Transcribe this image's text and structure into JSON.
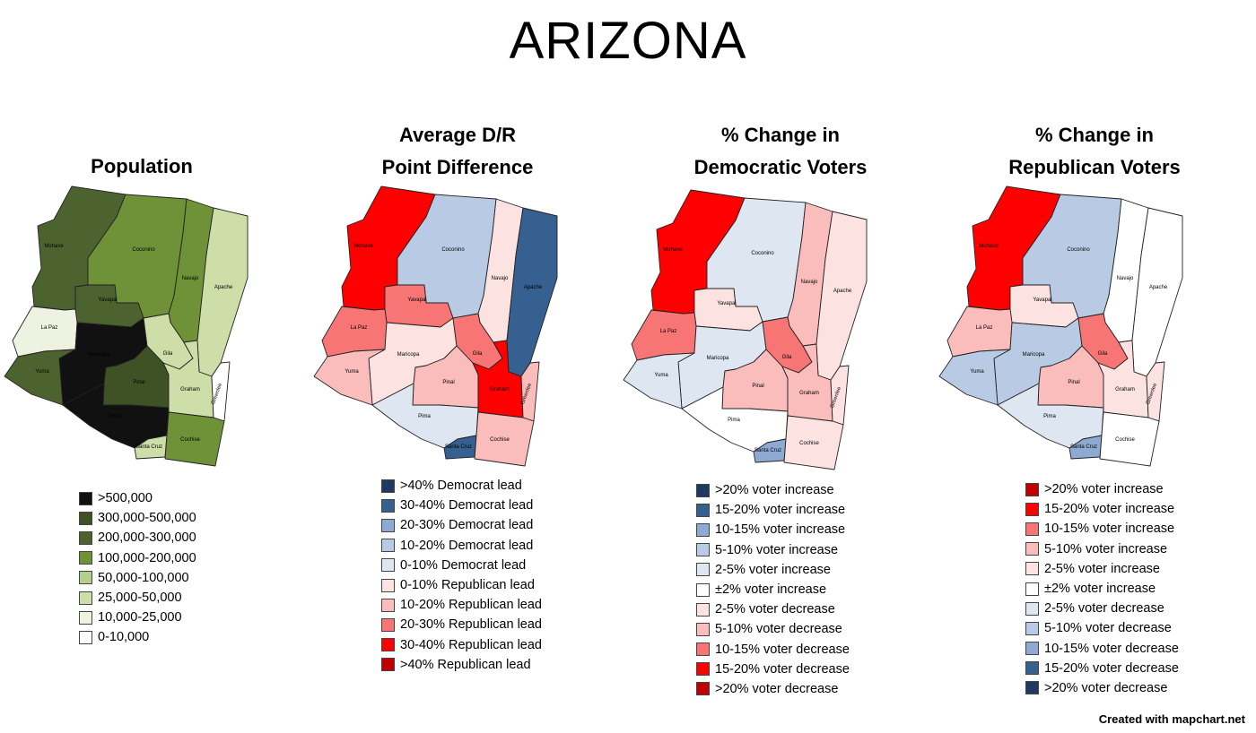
{
  "title": "ARIZONA",
  "credit": "Created with mapchart.net",
  "county_names": [
    "Mohave",
    "Coconino",
    "Navajo",
    "Apache",
    "Yavapai",
    "La Paz",
    "Maricopa",
    "Gila",
    "Yuma",
    "Pinal",
    "Graham",
    "Greenlee",
    "Pima",
    "Santa Cruz",
    "Cochise"
  ],
  "county_labels": {
    "Mohave": "Mohave",
    "Coconino": "Coconino",
    "Navajo": "Navajo",
    "Apache": "Apache",
    "Yavapai": "Yavapai",
    "La Paz": "La Paz",
    "Maricopa": "Maricopa",
    "Gila": "Gila",
    "Yuma": "Yuma",
    "Pinal": "Pinal",
    "Graham": "Graham",
    "Greenlee": "Greenlee",
    "Pima": "Pima",
    "Santa Cruz": "Santa Cruz",
    "Cochise": "Cochise"
  },
  "panels": [
    {
      "id": "population",
      "title_lines": [
        "Population"
      ],
      "legend": [
        {
          "label": ">500,000",
          "color": "#111111"
        },
        {
          "label": "300,000-500,000",
          "color": "#3e5226"
        },
        {
          "label": "200,000-300,000",
          "color": "#4c6330"
        },
        {
          "label": "100,000-200,000",
          "color": "#6f9238"
        },
        {
          "label": "50,000-100,000",
          "color": "#b5cf8f"
        },
        {
          "label": "25,000-50,000",
          "color": "#cddea9"
        },
        {
          "label": "10,000-25,000",
          "color": "#eef2e1"
        },
        {
          "label": "0-10,000",
          "color": "#ffffff"
        }
      ],
      "county_colors": {
        "Mohave": "#4c6330",
        "Coconino": "#6f9238",
        "Navajo": "#6f9238",
        "Apache": "#cddea9",
        "Yavapai": "#4c6330",
        "La Paz": "#eef2e1",
        "Maricopa": "#111111",
        "Gila": "#cddea9",
        "Yuma": "#4c6330",
        "Pinal": "#3e5226",
        "Graham": "#cddea9",
        "Greenlee": "#ffffff",
        "Pima": "#111111",
        "Santa Cruz": "#cddea9",
        "Cochise": "#6f9238"
      }
    },
    {
      "id": "point-difference",
      "title_lines": [
        "Average D/R",
        "Point Difference"
      ],
      "legend": [
        {
          "label": ">40% Democrat lead",
          "color": "#1f3a60"
        },
        {
          "label": "30-40% Democrat lead",
          "color": "#35608f"
        },
        {
          "label": "20-30% Democrat lead",
          "color": "#8eaad2"
        },
        {
          "label": "10-20% Democrat lead",
          "color": "#b9cbe4"
        },
        {
          "label": "0-10% Democrat lead",
          "color": "#dde6f1"
        },
        {
          "label": "0-10% Republican lead",
          "color": "#fde2e2"
        },
        {
          "label": "10-20% Republican lead",
          "color": "#fbbcbc"
        },
        {
          "label": "20-30% Republican lead",
          "color": "#f87575"
        },
        {
          "label": "30-40% Republican lead",
          "color": "#ff0000"
        },
        {
          "label": ">40% Republican lead",
          "color": "#c00000"
        }
      ],
      "county_colors": {
        "Mohave": "#ff0000",
        "Coconino": "#b9cbe4",
        "Navajo": "#fde2e2",
        "Apache": "#35608f",
        "Yavapai": "#f87575",
        "La Paz": "#f87575",
        "Maricopa": "#fde2e2",
        "Gila": "#f87575",
        "Yuma": "#fbbcbc",
        "Pinal": "#fbbcbc",
        "Graham": "#ff0000",
        "Greenlee": "#fbbcbc",
        "Pima": "#dde6f1",
        "Santa Cruz": "#35608f",
        "Cochise": "#fbbcbc"
      }
    },
    {
      "id": "dem-change",
      "title_lines": [
        "% Change in",
        "Democratic Voters"
      ],
      "legend": [
        {
          "label": ">20% voter increase",
          "color": "#1f3a60"
        },
        {
          "label": "15-20% voter increase",
          "color": "#35608f"
        },
        {
          "label": "10-15% voter increase",
          "color": "#8eaad2"
        },
        {
          "label": "5-10% voter increase",
          "color": "#b9cbe4"
        },
        {
          "label": "2-5% voter increase",
          "color": "#dde6f1"
        },
        {
          "label": "±2% voter increase",
          "color": "#ffffff"
        },
        {
          "label": "2-5% voter decrease",
          "color": "#fde2e2"
        },
        {
          "label": "5-10% voter decrease",
          "color": "#fbbcbc"
        },
        {
          "label": "10-15% voter decrease",
          "color": "#f87575"
        },
        {
          "label": "15-20% voter decrease",
          "color": "#ff0000"
        },
        {
          "label": ">20% voter decrease",
          "color": "#c00000"
        }
      ],
      "county_colors": {
        "Mohave": "#ff0000",
        "Coconino": "#dde6f1",
        "Navajo": "#fbbcbc",
        "Apache": "#fde2e2",
        "Yavapai": "#fde2e2",
        "La Paz": "#f87575",
        "Maricopa": "#dde6f1",
        "Gila": "#f87575",
        "Yuma": "#dde6f1",
        "Pinal": "#fbbcbc",
        "Graham": "#fbbcbc",
        "Greenlee": "#fde2e2",
        "Pima": "#ffffff",
        "Santa Cruz": "#8eaad2",
        "Cochise": "#fde2e2"
      }
    },
    {
      "id": "rep-change",
      "title_lines": [
        "% Change in",
        "Republican Voters"
      ],
      "legend": [
        {
          "label": ">20% voter increase",
          "color": "#c00000"
        },
        {
          "label": "15-20% voter increase",
          "color": "#ff0000"
        },
        {
          "label": "10-15% voter increase",
          "color": "#f87575"
        },
        {
          "label": "5-10% voter increase",
          "color": "#fbbcbc"
        },
        {
          "label": "2-5% voter increase",
          "color": "#fde2e2"
        },
        {
          "label": "±2% voter increase",
          "color": "#ffffff"
        },
        {
          "label": "2-5% voter decrease",
          "color": "#dde6f1"
        },
        {
          "label": "5-10% voter decrease",
          "color": "#b9cbe4"
        },
        {
          "label": "10-15% voter decrease",
          "color": "#8eaad2"
        },
        {
          "label": "15-20% voter decrease",
          "color": "#35608f"
        },
        {
          "label": ">20% voter decrease",
          "color": "#1f3a60"
        }
      ],
      "county_colors": {
        "Mohave": "#ff0000",
        "Coconino": "#b9cbe4",
        "Navajo": "#ffffff",
        "Apache": "#ffffff",
        "Yavapai": "#fde2e2",
        "La Paz": "#fbbcbc",
        "Maricopa": "#b9cbe4",
        "Gila": "#f87575",
        "Yuma": "#b9cbe4",
        "Pinal": "#fbbcbc",
        "Graham": "#fde2e2",
        "Greenlee": "#fde2e2",
        "Pima": "#dde6f1",
        "Santa Cruz": "#8eaad2",
        "Cochise": "#ffffff"
      }
    }
  ]
}
